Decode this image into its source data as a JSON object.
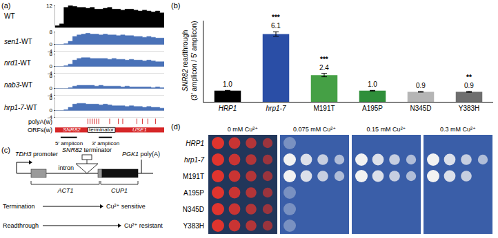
{
  "panel_labels": [
    "(a)",
    "(b)",
    "(c)",
    "(d)"
  ],
  "chart_data": [
    {
      "type": "area",
      "xlim": [
        0,
        100
      ],
      "grid": false,
      "tick_labels": "y",
      "x": [
        0,
        4,
        8,
        12,
        16,
        20,
        24,
        28,
        32,
        36,
        40,
        44,
        48,
        52,
        56,
        60,
        64,
        68,
        72,
        76,
        80,
        84,
        88,
        92,
        96,
        100
      ],
      "series": [
        {
          "name": "WT",
          "color": "#000000",
          "ylim": [
            0,
            12
          ],
          "yticks": [
            12
          ],
          "values": [
            1,
            2,
            11,
            12,
            11.5,
            11,
            11,
            10.5,
            11,
            10,
            10,
            10.5,
            11,
            10,
            10,
            9.5,
            10,
            10,
            9.5,
            9,
            9.5,
            9,
            8.5,
            9,
            8,
            7.5
          ]
        },
        {
          "name": "sen1-WT",
          "color": "#4a72b8",
          "ylim": [
            -4,
            8
          ],
          "yticks": [
            -4,
            0,
            8
          ],
          "values": [
            0,
            0,
            0.5,
            2,
            5,
            6,
            6.5,
            7,
            6.5,
            6.5,
            6,
            6.5,
            6,
            6,
            5.5,
            6,
            5.5,
            5.5,
            5,
            5,
            4.5,
            5,
            4.5,
            4,
            4,
            3.5
          ]
        },
        {
          "name": "nrd1-WT",
          "color": "#4a72b8",
          "ylim": [
            -4,
            8
          ],
          "yticks": [
            -4,
            0,
            8
          ],
          "values": [
            0,
            0,
            0.5,
            1.5,
            4,
            5,
            5.5,
            5.5,
            5,
            5,
            5,
            5,
            4.5,
            5,
            4.5,
            4.5,
            4,
            4.5,
            4,
            4,
            3.5,
            4,
            3.5,
            3,
            3,
            2.5
          ]
        },
        {
          "name": "nab3-WT",
          "color": "#4a72b8",
          "ylim": [
            -4,
            8
          ],
          "yticks": [
            -4,
            0,
            8
          ],
          "values": [
            0,
            0,
            0,
            0.5,
            1.5,
            2,
            2,
            2,
            2,
            1.5,
            2,
            1.5,
            1.5,
            1.5,
            1.5,
            1,
            1.5,
            1,
            1,
            1,
            1,
            1,
            0.5,
            1,
            0.5,
            0.5
          ]
        },
        {
          "name": "hrp1-7-WT",
          "color": "#4a72b8",
          "ylim": [
            -4,
            8
          ],
          "yticks": [
            -4,
            0,
            8
          ],
          "values": [
            0,
            0,
            0.5,
            2,
            4,
            4.5,
            4.5,
            4,
            4,
            4,
            3.5,
            4,
            3.5,
            3,
            3,
            3,
            2.5,
            3,
            2.5,
            2.5,
            2,
            2.5,
            2,
            2,
            1.5,
            1.5
          ]
        }
      ],
      "features": {
        "polyA_label": "polyA(w)",
        "polyA_color": "#d62728",
        "polyA_sites": [
          30,
          32,
          34,
          36,
          38,
          40,
          50,
          58,
          62,
          75,
          80,
          85,
          92
        ],
        "orf_label": "ORFs(w)",
        "orf_color": "#d62728",
        "orfs": [
          {
            "name": "SNR82",
            "start": 0,
            "end": 30
          },
          {
            "name": "USE1",
            "start": 55,
            "end": 100
          }
        ],
        "terminator": {
          "name": "terminator",
          "start": 30,
          "end": 55
        },
        "amplicons": [
          {
            "name": "5′ amplicon",
            "start": 5,
            "end": 20
          },
          {
            "name": "3′ amplicon",
            "start": 40,
            "end": 52
          }
        ]
      }
    },
    {
      "type": "bar",
      "categories": [
        "HRP1",
        "hrp1-7",
        "M191T",
        "A195P",
        "N345D",
        "Y383H"
      ],
      "values": [
        1.0,
        6.1,
        2.4,
        1.0,
        0.9,
        0.9
      ],
      "value_labels": [
        "1.0",
        "6.1",
        "2.4",
        "1.0",
        "0.9",
        "0.9"
      ],
      "errors": [
        0.03,
        0.2,
        0.15,
        0.03,
        0.03,
        0.04
      ],
      "significance": [
        null,
        "***",
        "***",
        null,
        null,
        "**"
      ],
      "colors": [
        "#000000",
        "#2a4ea6",
        "#45a045",
        "#2f8f3a",
        "#b5b5b5",
        "#6e6e6e"
      ],
      "ylabel": [
        "SNR82 readthrough",
        "(3′ amplicon / 5′ amplicon)"
      ],
      "ylim": [
        0,
        7.3
      ],
      "yticks": [],
      "grid": false,
      "data_labels": true,
      "tick_labels": "x"
    }
  ],
  "diagram": {
    "promoter": {
      "name": "TDH3",
      "text": "promoter"
    },
    "terminator": {
      "name": "SNR82",
      "text": "terminator"
    },
    "polyA": {
      "name": "PGK1",
      "text": "poly(A)"
    },
    "intron": "intron",
    "genes": [
      "ACT1",
      "CUP1"
    ],
    "outcomes": [
      {
        "label": "Termination",
        "result": "Cu²⁺ sensitive"
      },
      {
        "label": "Readthrough",
        "result": "Cu²⁺ resistant"
      }
    ]
  },
  "spot_assay": {
    "conditions": [
      "0 mM Cu²⁺",
      "0.075 mM Cu²⁺",
      "0.15 mM Cu²⁺",
      "0.3 mM Cu²⁺"
    ],
    "strains": [
      "HRP1",
      "hrp1-7",
      "M191T",
      "A195P",
      "N345D",
      "Y383H"
    ],
    "growth": [
      [
        4,
        1,
        0,
        0
      ],
      [
        4,
        4,
        4,
        4
      ],
      [
        4,
        4,
        4,
        3
      ],
      [
        4,
        1,
        0,
        0
      ],
      [
        4,
        1,
        0,
        0
      ],
      [
        4,
        1,
        0,
        0
      ]
    ]
  }
}
